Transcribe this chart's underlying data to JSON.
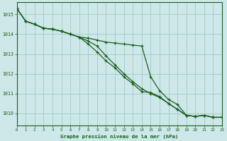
{
  "title": "Graphe pression niveau de la mer (hPa)",
  "background_color": "#cce8e8",
  "plot_bg_color": "#cce8e8",
  "grid_color": "#aacccc",
  "line_color": "#1e5c1e",
  "xlim": [
    0,
    23
  ],
  "ylim": [
    1009.4,
    1015.6
  ],
  "yticks": [
    1010,
    1011,
    1012,
    1013,
    1014,
    1015
  ],
  "xticks": [
    0,
    1,
    2,
    3,
    4,
    5,
    6,
    7,
    8,
    9,
    10,
    11,
    12,
    13,
    14,
    15,
    16,
    17,
    18,
    19,
    20,
    21,
    22,
    23
  ],
  "series": [
    [
      1015.3,
      1014.65,
      1014.5,
      1014.3,
      1014.25,
      1014.15,
      1014.0,
      1013.85,
      1013.8,
      1013.7,
      1013.6,
      1013.55,
      1013.5,
      1013.45,
      1013.4,
      1011.85,
      1011.15,
      1010.7,
      1010.45,
      1009.9,
      1009.85,
      1009.9,
      1009.8,
      1009.8
    ],
    [
      1015.3,
      1014.65,
      1014.5,
      1014.3,
      1014.25,
      1014.15,
      1014.0,
      1013.85,
      1013.5,
      1013.1,
      1012.65,
      1012.3,
      1011.85,
      1011.5,
      1011.1,
      1011.05,
      1010.85,
      1010.5,
      1010.2,
      1009.9,
      1009.85,
      1009.9,
      1009.8,
      1009.8
    ],
    [
      1015.3,
      1014.65,
      1014.5,
      1014.3,
      1014.25,
      1014.15,
      1014.0,
      1013.85,
      1013.65,
      1013.4,
      1012.9,
      1012.45,
      1012.0,
      1011.6,
      1011.25,
      1011.0,
      1010.8,
      1010.5,
      1010.2,
      1009.9,
      1009.85,
      1009.9,
      1009.8,
      1009.8
    ]
  ]
}
